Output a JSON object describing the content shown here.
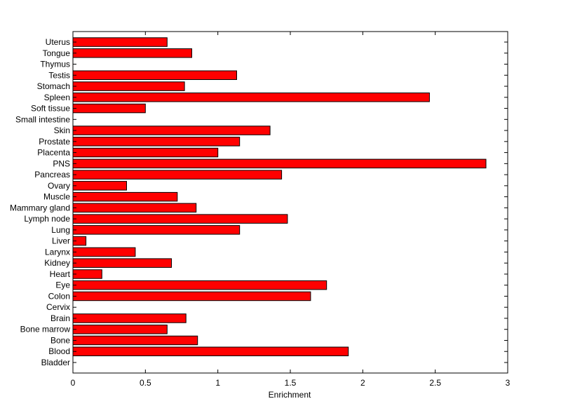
{
  "chart_data": {
    "type": "bar",
    "orientation": "horizontal",
    "title": "",
    "xlabel": "Enrichment",
    "ylabel": "",
    "xlim": [
      0,
      3
    ],
    "xticks": [
      "0",
      "0.5",
      "1",
      "1.5",
      "2",
      "2.5",
      "3"
    ],
    "grid": false,
    "legend": "none",
    "bar_color": "#ff0000",
    "categories": [
      "Bladder",
      "Blood",
      "Bone",
      "Bone marrow",
      "Brain",
      "Cervix",
      "Colon",
      "Eye",
      "Heart",
      "Kidney",
      "Larynx",
      "Liver",
      "Lung",
      "Lymph node",
      "Mammary gland",
      "Muscle",
      "Ovary",
      "Pancreas",
      "PNS",
      "Placenta",
      "Prostate",
      "Skin",
      "Small intestine",
      "Soft tissue",
      "Spleen",
      "Stomach",
      "Testis",
      "Thymus",
      "Tongue",
      "Uterus"
    ],
    "values": [
      0,
      1.9,
      0.86,
      0.65,
      0.78,
      0,
      1.64,
      1.75,
      0.2,
      0.68,
      0.43,
      0.09,
      1.15,
      1.48,
      0.85,
      0.72,
      0.37,
      1.44,
      2.85,
      1.0,
      1.15,
      1.36,
      0,
      0.5,
      2.46,
      0.77,
      1.13,
      0,
      0.82,
      0.65
    ]
  }
}
